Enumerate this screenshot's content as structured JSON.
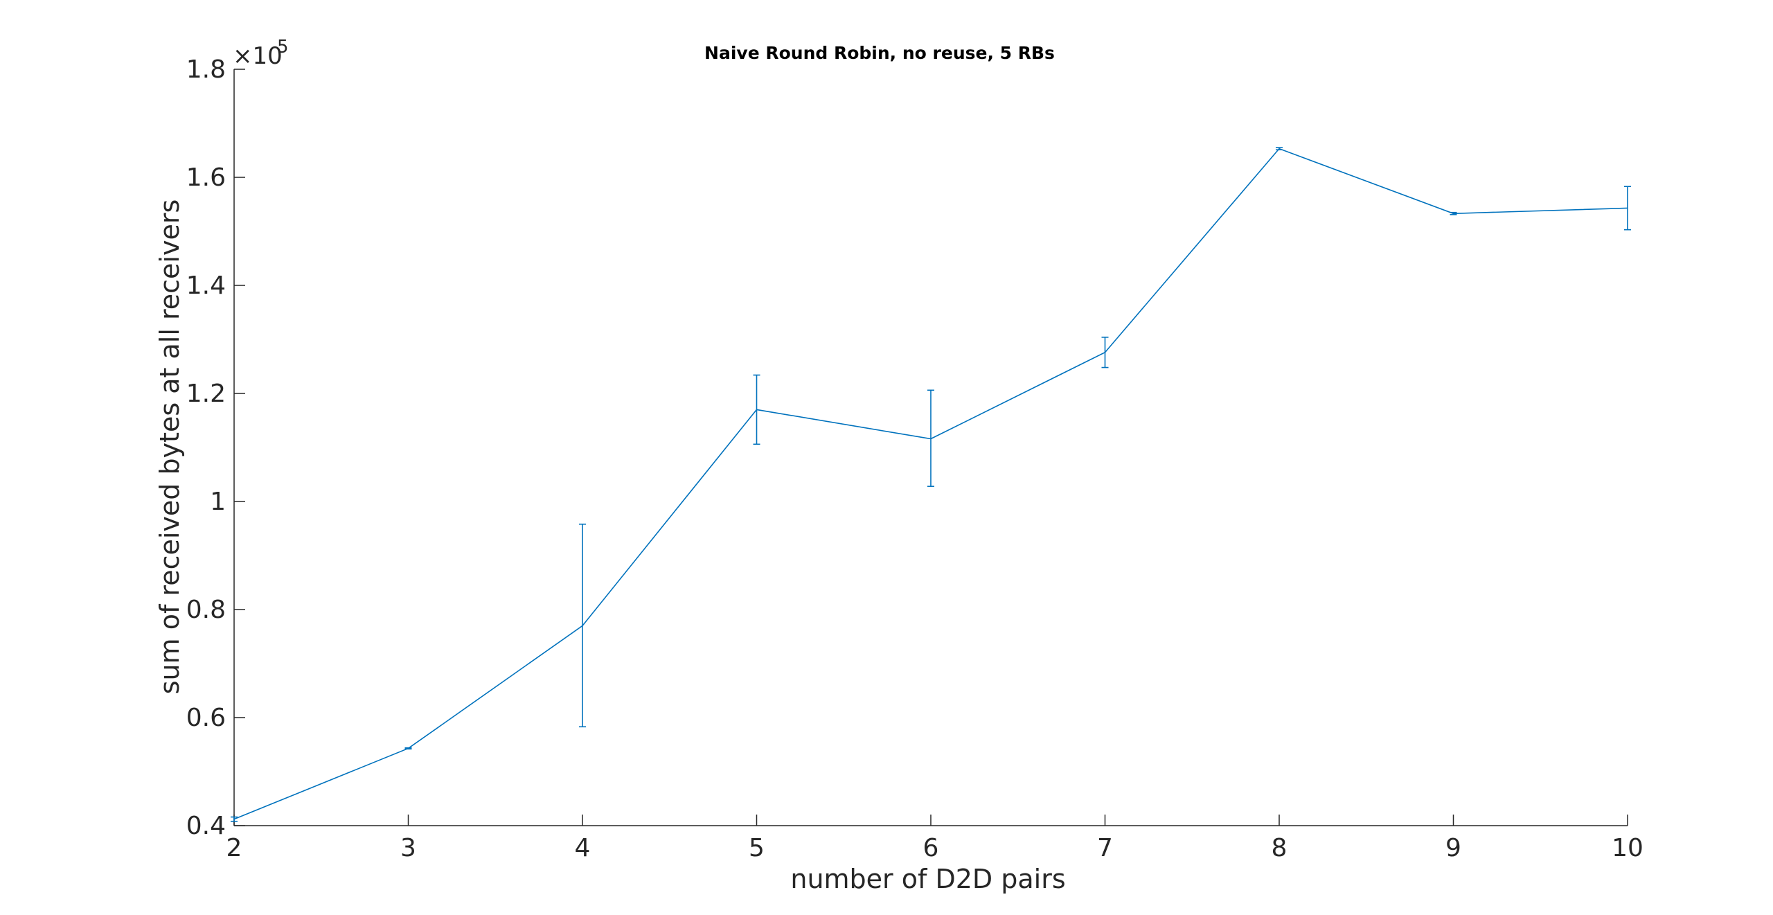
{
  "chart_data": {
    "type": "line",
    "title": "Naive Round Robin, no reuse, 5 RBs",
    "xlabel": "number of D2D pairs",
    "ylabel": "sum of received bytes at all receivers",
    "x": [
      2,
      3,
      4,
      5,
      6,
      7,
      8,
      9,
      10
    ],
    "series": [
      {
        "name": "sum of received bytes",
        "values": [
          41200,
          54300,
          77000,
          117000,
          111600,
          127600,
          165300,
          153300,
          154300
        ],
        "err_low": [
          40800,
          54200,
          58300,
          110600,
          102800,
          124800,
          165100,
          153100,
          150300
        ],
        "err_high": [
          41600,
          54400,
          95800,
          123400,
          120600,
          130400,
          165500,
          153500,
          158300
        ],
        "color": "#0072bd"
      }
    ],
    "xlim": [
      2,
      10
    ],
    "ylim": [
      40000,
      180000
    ],
    "xticks": [
      "2",
      "3",
      "4",
      "5",
      "6",
      "7",
      "8",
      "9",
      "10"
    ],
    "yticks": [
      "0.4",
      "0.6",
      "0.8",
      "1",
      "1.2",
      "1.4",
      "1.6",
      "1.8"
    ],
    "ytick_values": [
      40000,
      60000,
      80000,
      100000,
      120000,
      140000,
      160000,
      180000
    ],
    "y_exponent_base": "×10",
    "y_exponent_power": "5",
    "grid": false,
    "axis_color": "#262626"
  }
}
